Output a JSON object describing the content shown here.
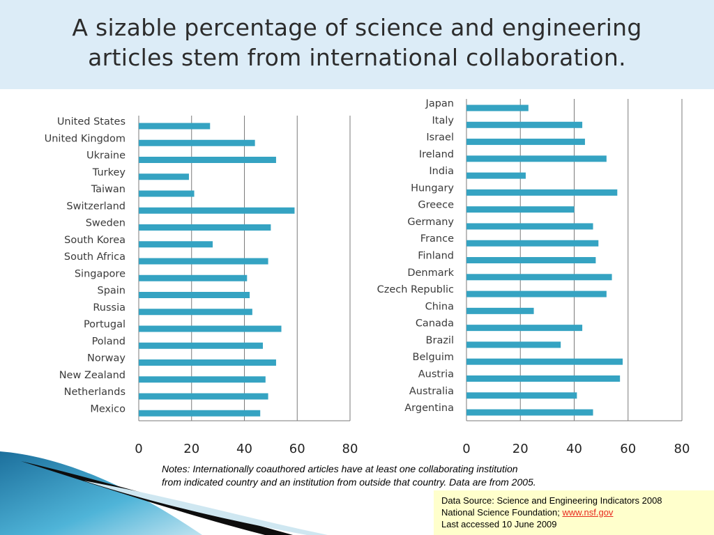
{
  "title": {
    "line1": "A sizable percentage of science and engineering",
    "line2": "articles stem from international collaboration."
  },
  "chart_data": [
    {
      "type": "bar",
      "orientation": "horizontal",
      "categories": [
        "United States",
        "United Kingdom",
        "Ukraine",
        "Turkey",
        "Taiwan",
        "Switzerland",
        "Sweden",
        "South Korea",
        "South Africa",
        "Singapore",
        "Spain",
        "Russia",
        "Portugal",
        "Poland",
        "Norway",
        "New Zealand",
        "Netherlands",
        "Mexico"
      ],
      "values": [
        27,
        44,
        52,
        19,
        21,
        59,
        50,
        28,
        49,
        41,
        42,
        43,
        54,
        47,
        52,
        48,
        49,
        46
      ],
      "xlim": [
        0,
        80
      ],
      "xticks": [
        "0",
        "20",
        "40",
        "60",
        "80"
      ],
      "grid": true,
      "color": "#35a3c2"
    },
    {
      "type": "bar",
      "orientation": "horizontal",
      "categories": [
        "Japan",
        "Italy",
        "Israel",
        "Ireland",
        "India",
        "Hungary",
        "Greece",
        "Germany",
        "France",
        "Finland",
        "Denmark",
        "Czech Republic",
        "China",
        "Canada",
        "Brazil",
        "Belguim",
        "Austria",
        "Australia",
        "Argentina"
      ],
      "values": [
        23,
        43,
        44,
        52,
        22,
        56,
        40,
        47,
        49,
        48,
        54,
        52,
        25,
        43,
        35,
        58,
        57,
        41,
        47
      ],
      "xlim": [
        0,
        80
      ],
      "xticks": [
        "0",
        "20",
        "40",
        "60",
        "80"
      ],
      "grid": true,
      "color": "#35a3c2"
    }
  ],
  "notes": {
    "line1": "Notes:  Internationally coauthored articles have at least one collaborating institution",
    "line2": "from indicated country and an institution from outside that country.  Data are from 2005."
  },
  "source": {
    "line1": "Data Source:  Science and Engineering Indicators 2008",
    "line2_prefix": "National Science Foundation; ",
    "link": "www.nsf.gov",
    "line3": "Last accessed 10 June 2009"
  }
}
